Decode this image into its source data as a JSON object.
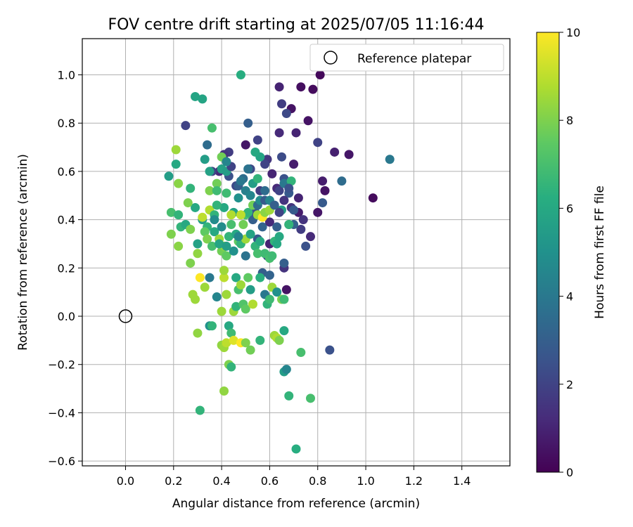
{
  "chart_data": {
    "type": "scatter",
    "title": "FOV centre drift starting at 2025/07/05 11:16:44",
    "xlabel": "Angular distance from reference (arcmin)",
    "ylabel": "Rotation from reference (arcmin)",
    "xlim": [
      -0.18,
      1.6
    ],
    "ylim": [
      -0.62,
      1.15
    ],
    "xticks": [
      "0.0",
      "0.2",
      "0.4",
      "0.6",
      "0.8",
      "1.0",
      "1.2",
      "1.4"
    ],
    "yticks": [
      "−0.6",
      "−0.4",
      "−0.2",
      "0.0",
      "0.2",
      "0.4",
      "0.6",
      "0.8",
      "1.0"
    ],
    "grid": true,
    "legend": {
      "placement": "top-right",
      "entries": [
        "Reference platepar"
      ]
    },
    "reference_point": {
      "label": "Reference platepar",
      "x": 0.0,
      "y": 0.0
    },
    "colorbar": {
      "label": "Hours from first FF file",
      "min": 0,
      "max": 10,
      "ticks": [
        "0",
        "2",
        "4",
        "6",
        "8",
        "10"
      ],
      "colormap": "viridis"
    },
    "points": [
      [
        0.5,
        0.71,
        0.6
      ],
      [
        0.64,
        0.95,
        1.0
      ],
      [
        0.73,
        0.95,
        0.4
      ],
      [
        0.78,
        0.94,
        0.3
      ],
      [
        0.81,
        1.0,
        0.2
      ],
      [
        0.65,
        0.88,
        1.8
      ],
      [
        0.69,
        0.86,
        0.5
      ],
      [
        0.67,
        0.84,
        2.2
      ],
      [
        0.76,
        0.81,
        0.5
      ],
      [
        0.64,
        0.76,
        1.2
      ],
      [
        0.71,
        0.76,
        1.0
      ],
      [
        0.8,
        0.72,
        2.0
      ],
      [
        0.87,
        0.68,
        0.9
      ],
      [
        0.93,
        0.67,
        0.6
      ],
      [
        1.1,
        0.65,
        4.0
      ],
      [
        1.03,
        0.49,
        0.3
      ],
      [
        0.9,
        0.56,
        3.5
      ],
      [
        0.82,
        0.56,
        0.8
      ],
      [
        0.83,
        0.52,
        0.5
      ],
      [
        0.82,
        0.47,
        2.8
      ],
      [
        0.8,
        0.43,
        0.6
      ],
      [
        0.77,
        0.33,
        1.2
      ],
      [
        0.75,
        0.29,
        2.5
      ],
      [
        0.72,
        0.43,
        0.8
      ],
      [
        0.74,
        0.4,
        1.5
      ],
      [
        0.73,
        0.36,
        1.8
      ],
      [
        0.68,
        0.38,
        3.0
      ],
      [
        0.85,
        -0.14,
        2.5
      ],
      [
        0.66,
        0.2,
        1.5
      ],
      [
        0.67,
        0.11,
        0.5
      ],
      [
        0.6,
        0.3,
        1.0
      ],
      [
        0.55,
        0.73,
        2.0
      ],
      [
        0.51,
        0.8,
        3.0
      ],
      [
        0.43,
        0.68,
        1.8
      ],
      [
        0.41,
        0.67,
        1.5
      ],
      [
        0.39,
        0.6,
        1.2
      ],
      [
        0.36,
        0.6,
        2.0
      ],
      [
        0.43,
        0.58,
        2.5
      ],
      [
        0.46,
        0.54,
        2.2
      ],
      [
        0.49,
        0.57,
        3.5
      ],
      [
        0.56,
        0.52,
        1.8
      ],
      [
        0.61,
        0.59,
        1.0
      ],
      [
        0.63,
        0.53,
        1.2
      ],
      [
        0.64,
        0.52,
        2.0
      ],
      [
        0.68,
        0.51,
        2.8
      ],
      [
        0.69,
        0.45,
        1.5
      ],
      [
        0.72,
        0.49,
        1.0
      ],
      [
        0.65,
        0.66,
        2.3
      ],
      [
        0.7,
        0.63,
        0.8
      ],
      [
        0.66,
        0.57,
        2.5
      ],
      [
        0.59,
        0.65,
        1.6
      ],
      [
        0.58,
        0.63,
        2.0
      ],
      [
        0.52,
        0.61,
        2.2
      ],
      [
        0.54,
        0.43,
        2.5
      ],
      [
        0.53,
        0.4,
        3.0
      ],
      [
        0.55,
        0.32,
        2.8
      ],
      [
        0.57,
        0.37,
        3.2
      ],
      [
        0.59,
        0.25,
        2.0
      ],
      [
        0.6,
        0.39,
        1.2
      ],
      [
        0.63,
        0.37,
        3.0
      ],
      [
        0.57,
        0.18,
        3.0
      ],
      [
        0.25,
        0.79,
        2.0
      ],
      [
        0.29,
        0.91,
        5.8
      ],
      [
        0.32,
        0.9,
        5.8
      ],
      [
        0.48,
        1.0,
        6.2
      ],
      [
        0.36,
        0.78,
        7.0
      ],
      [
        0.33,
        0.65,
        5.5
      ],
      [
        0.34,
        0.71,
        3.5
      ],
      [
        0.4,
        0.66,
        7.8
      ],
      [
        0.4,
        0.61,
        5.7
      ],
      [
        0.42,
        0.6,
        5.5
      ],
      [
        0.38,
        0.55,
        7.8
      ],
      [
        0.35,
        0.52,
        8.0
      ],
      [
        0.35,
        0.6,
        5.7
      ],
      [
        0.18,
        0.58,
        5.5
      ],
      [
        0.21,
        0.69,
        8.5
      ],
      [
        0.21,
        0.63,
        6.0
      ],
      [
        0.22,
        0.55,
        8.2
      ],
      [
        0.27,
        0.53,
        6.5
      ],
      [
        0.29,
        0.45,
        6.0
      ],
      [
        0.26,
        0.47,
        8.0
      ],
      [
        0.19,
        0.43,
        7.0
      ],
      [
        0.22,
        0.42,
        6.5
      ],
      [
        0.23,
        0.37,
        6.5
      ],
      [
        0.25,
        0.38,
        6.0
      ],
      [
        0.27,
        0.36,
        8.0
      ],
      [
        0.19,
        0.34,
        8.0
      ],
      [
        0.22,
        0.29,
        8.2
      ],
      [
        0.27,
        0.22,
        8.0
      ],
      [
        0.3,
        0.26,
        8.3
      ],
      [
        0.3,
        0.3,
        5.7
      ],
      [
        0.32,
        0.4,
        5.5
      ],
      [
        0.35,
        0.44,
        8.8
      ],
      [
        0.34,
        0.37,
        6.5
      ],
      [
        0.33,
        0.35,
        7.5
      ],
      [
        0.34,
        0.32,
        8.0
      ],
      [
        0.36,
        0.29,
        7.0
      ],
      [
        0.37,
        0.35,
        6.0
      ],
      [
        0.39,
        0.32,
        8.5
      ],
      [
        0.4,
        0.27,
        7.8
      ],
      [
        0.41,
        0.29,
        8.2
      ],
      [
        0.42,
        0.25,
        7.5
      ],
      [
        0.43,
        0.33,
        6.5
      ],
      [
        0.44,
        0.38,
        7.0
      ],
      [
        0.45,
        0.43,
        5.7
      ],
      [
        0.46,
        0.34,
        6.0
      ],
      [
        0.47,
        0.31,
        7.5
      ],
      [
        0.48,
        0.3,
        6.5
      ],
      [
        0.49,
        0.38,
        7.8
      ],
      [
        0.5,
        0.32,
        8.5
      ],
      [
        0.52,
        0.34,
        5.8
      ],
      [
        0.54,
        0.29,
        6.5
      ],
      [
        0.55,
        0.26,
        7.0
      ],
      [
        0.56,
        0.31,
        6.0
      ],
      [
        0.58,
        0.26,
        6.8
      ],
      [
        0.6,
        0.24,
        7.0
      ],
      [
        0.62,
        0.31,
        6.5
      ],
      [
        0.5,
        0.42,
        7.0
      ],
      [
        0.51,
        0.43,
        6.5
      ],
      [
        0.53,
        0.46,
        7.8
      ],
      [
        0.55,
        0.42,
        8.5
      ],
      [
        0.57,
        0.41,
        10.0
      ],
      [
        0.58,
        0.43,
        8.2
      ],
      [
        0.6,
        0.44,
        8.5
      ],
      [
        0.44,
        0.42,
        8.8
      ],
      [
        0.48,
        0.42,
        9.0
      ],
      [
        0.41,
        0.45,
        6.0
      ],
      [
        0.38,
        0.46,
        6.5
      ],
      [
        0.37,
        0.42,
        6.5
      ],
      [
        0.32,
        0.41,
        9.0
      ],
      [
        0.31,
        0.16,
        10.0
      ],
      [
        0.33,
        0.12,
        8.5
      ],
      [
        0.35,
        0.16,
        4.0
      ],
      [
        0.28,
        0.09,
        8.5
      ],
      [
        0.29,
        0.07,
        8.5
      ],
      [
        0.3,
        -0.07,
        8.3
      ],
      [
        0.35,
        -0.04,
        5.0
      ],
      [
        0.36,
        -0.04,
        6.5
      ],
      [
        0.38,
        0.08,
        4.5
      ],
      [
        0.39,
        0.3,
        5.8
      ],
      [
        0.4,
        0.02,
        8.5
      ],
      [
        0.4,
        -0.12,
        8.3
      ],
      [
        0.41,
        -0.13,
        8.5
      ],
      [
        0.42,
        -0.11,
        9.0
      ],
      [
        0.42,
        0.09,
        8.5
      ],
      [
        0.41,
        0.16,
        9.0
      ],
      [
        0.41,
        0.19,
        8.5
      ],
      [
        0.43,
        -0.04,
        6.0
      ],
      [
        0.43,
        -0.2,
        8.0
      ],
      [
        0.44,
        -0.21,
        6.5
      ],
      [
        0.44,
        -0.07,
        6.8
      ],
      [
        0.45,
        -0.1,
        9.5
      ],
      [
        0.45,
        0.02,
        8.5
      ],
      [
        0.46,
        0.04,
        6.5
      ],
      [
        0.46,
        0.16,
        6.0
      ],
      [
        0.47,
        0.11,
        7.0
      ],
      [
        0.48,
        0.13,
        8.5
      ],
      [
        0.49,
        0.05,
        7.2
      ],
      [
        0.48,
        -0.11,
        10.0
      ],
      [
        0.5,
        -0.11,
        8.0
      ],
      [
        0.5,
        0.03,
        7.5
      ],
      [
        0.51,
        0.16,
        7.5
      ],
      [
        0.52,
        0.11,
        5.5
      ],
      [
        0.53,
        0.05,
        8.8
      ],
      [
        0.52,
        -0.14,
        7.8
      ],
      [
        0.56,
        -0.1,
        6.5
      ],
      [
        0.56,
        0.16,
        6.3
      ],
      [
        0.58,
        0.09,
        4.0
      ],
      [
        0.59,
        0.05,
        6.5
      ],
      [
        0.6,
        0.07,
        6.8
      ],
      [
        0.61,
        0.12,
        8.5
      ],
      [
        0.62,
        -0.08,
        8.5
      ],
      [
        0.63,
        -0.09,
        8.8
      ],
      [
        0.64,
        -0.1,
        8.0
      ],
      [
        0.65,
        0.07,
        8.0
      ],
      [
        0.66,
        0.07,
        6.8
      ],
      [
        0.66,
        -0.06,
        6.0
      ],
      [
        0.66,
        -0.23,
        5.5
      ],
      [
        0.67,
        -0.22,
        4.5
      ],
      [
        0.68,
        -0.33,
        6.5
      ],
      [
        0.73,
        -0.15,
        7.0
      ],
      [
        0.71,
        -0.55,
        6.2
      ],
      [
        0.77,
        -0.34,
        7.0
      ],
      [
        0.41,
        -0.31,
        8.3
      ],
      [
        0.31,
        -0.39,
        6.5
      ],
      [
        0.63,
        0.1,
        5.0
      ],
      [
        0.6,
        0.17,
        3.2
      ],
      [
        0.42,
        0.51,
        6.8
      ],
      [
        0.44,
        0.62,
        2.0
      ],
      [
        0.47,
        0.54,
        3.0
      ],
      [
        0.53,
        0.55,
        5.5
      ],
      [
        0.55,
        0.57,
        6.5
      ],
      [
        0.56,
        0.66,
        5.8
      ],
      [
        0.54,
        0.68,
        6.0
      ],
      [
        0.65,
        0.44,
        5.5
      ],
      [
        0.66,
        0.55,
        4.0
      ],
      [
        0.69,
        0.56,
        6.5
      ],
      [
        0.7,
        0.44,
        2.8
      ],
      [
        0.7,
        0.38,
        3.2
      ],
      [
        0.68,
        0.38,
        6.5
      ],
      [
        0.64,
        0.33,
        6.0
      ],
      [
        0.63,
        0.3,
        6.0
      ],
      [
        0.61,
        0.25,
        6.8
      ],
      [
        0.66,
        0.22,
        3.0
      ],
      [
        0.5,
        0.25,
        3.8
      ],
      [
        0.45,
        0.27,
        5.0
      ],
      [
        0.42,
        0.29,
        5.5
      ],
      [
        0.47,
        0.33,
        4.5
      ],
      [
        0.4,
        0.37,
        4.8
      ],
      [
        0.37,
        0.4,
        4.8
      ],
      [
        0.38,
        0.52,
        6.8
      ],
      [
        0.42,
        0.64,
        4.5
      ],
      [
        0.48,
        0.56,
        4.0
      ],
      [
        0.51,
        0.61,
        3.8
      ],
      [
        0.47,
        0.49,
        5.0
      ],
      [
        0.5,
        0.52,
        4.3
      ],
      [
        0.52,
        0.5,
        4.5
      ],
      [
        0.55,
        0.46,
        3.5
      ],
      [
        0.56,
        0.48,
        4.8
      ],
      [
        0.58,
        0.52,
        3.5
      ],
      [
        0.58,
        0.48,
        2.8
      ],
      [
        0.6,
        0.48,
        4.5
      ],
      [
        0.62,
        0.46,
        3.0
      ],
      [
        0.64,
        0.43,
        2.0
      ],
      [
        0.66,
        0.48,
        1.5
      ],
      [
        0.68,
        0.53,
        2.5
      ]
    ]
  }
}
